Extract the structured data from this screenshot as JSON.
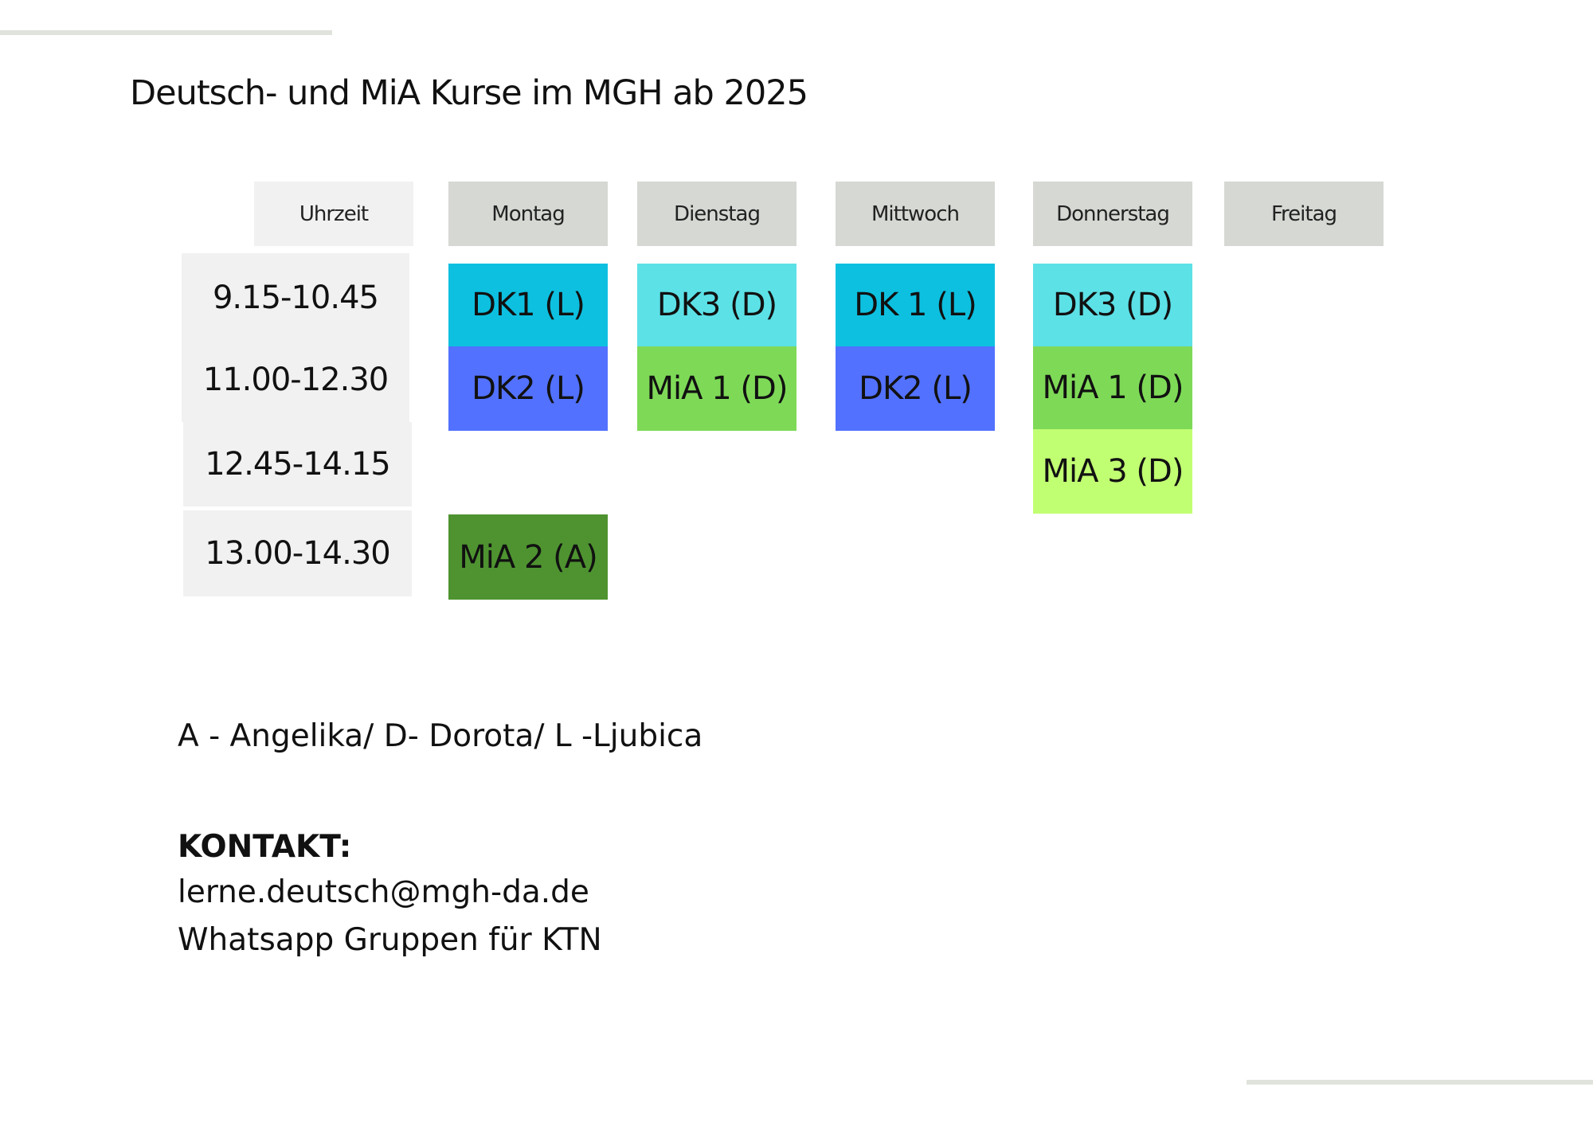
{
  "title": "Deutsch- und MiA Kurse im MGH ab 2025",
  "header": {
    "time_label": "Uhrzeit",
    "days": [
      "Montag",
      "Dienstag",
      "Mittwoch",
      "Donnerstag",
      "Freitag"
    ]
  },
  "times": [
    "9.15-10.45",
    "11.00-12.30",
    "12.45-14.15",
    "13.00-14.30"
  ],
  "courses": {
    "montag_1": {
      "label": "DK1 (L)",
      "color": "#0dc0e0"
    },
    "montag_2": {
      "label": "DK2 (L)",
      "color": "#5271ff"
    },
    "montag_4": {
      "label": "MiA 2 (A)",
      "color": "#4e9330"
    },
    "dienstag_1": {
      "label": "DK3 (D)",
      "color": "#5ce1e6"
    },
    "dienstag_2": {
      "label": "MiA 1 (D)",
      "color": "#7ed957"
    },
    "mittwoch_1": {
      "label": "DK 1 (L)",
      "color": "#0dc0e0"
    },
    "mittwoch_2": {
      "label": "DK2 (L)",
      "color": "#5271ff"
    },
    "donnerstag_1": {
      "label": "DK3 (D)",
      "color": "#5ce1e6"
    },
    "donnerstag_2": {
      "label": "MiA 1 (D)",
      "color": "#7ed957"
    },
    "donnerstag_3": {
      "label": "MiA 3 (D)",
      "color": "#c1ff72"
    }
  },
  "legend": "A - Angelika/ D- Dorota/ L -Ljubica",
  "contact": {
    "heading": "KONTAKT:",
    "email": "lerne.deutsch@mgh-da.de",
    "whatsapp": "Whatsapp Gruppen für KTN"
  }
}
